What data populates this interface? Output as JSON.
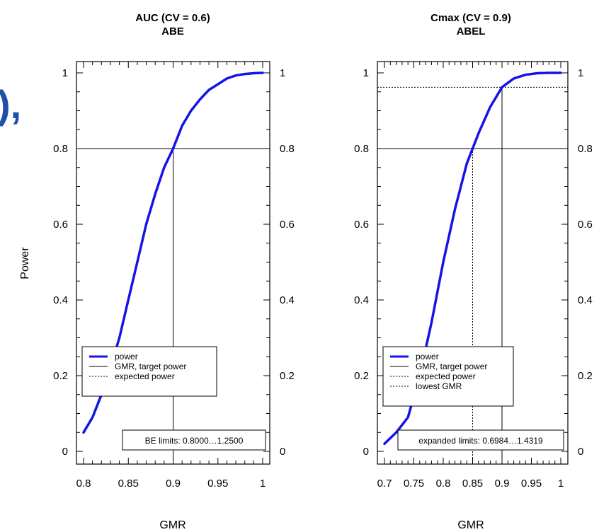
{
  "edge_text": "),",
  "y_axis_label": "Power",
  "colors": {
    "power": "#1414e6",
    "ref": "#000000"
  },
  "chart_data": [
    {
      "type": "line",
      "title": "AUC (CV = 0.6)",
      "subtitle": "ABE",
      "xlabel": "GMR",
      "ylabel": "Power",
      "xlim": [
        0.8,
        1.0
      ],
      "ylim": [
        0,
        1
      ],
      "xticks": [
        "0.8",
        "0.85",
        "0.9",
        "0.95",
        "1"
      ],
      "yticks": [
        "0",
        "0.2",
        "0.4",
        "0.6",
        "0.8",
        "1"
      ],
      "target_power": 0.8,
      "target_gmr": 0.9,
      "legend": [
        "power",
        "GMR, target power",
        "expected power"
      ],
      "limits_label": "BE limits: 0.8000…1.2500",
      "series": [
        {
          "name": "power",
          "x": [
            0.8,
            0.81,
            0.82,
            0.83,
            0.84,
            0.85,
            0.86,
            0.87,
            0.88,
            0.89,
            0.9,
            0.91,
            0.92,
            0.93,
            0.94,
            0.95,
            0.96,
            0.97,
            0.98,
            0.99,
            1.0
          ],
          "y": [
            0.05,
            0.09,
            0.15,
            0.22,
            0.3,
            0.4,
            0.5,
            0.6,
            0.68,
            0.75,
            0.8,
            0.86,
            0.9,
            0.93,
            0.955,
            0.97,
            0.985,
            0.993,
            0.997,
            0.999,
            1.0
          ]
        }
      ]
    },
    {
      "type": "line",
      "title": "Cmax (CV = 0.9)",
      "subtitle": "ABEL",
      "xlabel": "GMR",
      "ylabel": "Power",
      "xlim": [
        0.7,
        1.0
      ],
      "ylim": [
        0,
        1
      ],
      "xticks": [
        "0.7",
        "0.75",
        "0.8",
        "0.85",
        "0.9",
        "0.95",
        "1"
      ],
      "yticks": [
        "0",
        "0.2",
        "0.4",
        "0.6",
        "0.8",
        "1"
      ],
      "target_power": 0.8,
      "target_gmr": 0.9,
      "expected_power": 0.962,
      "lowest_gmr": 0.85,
      "legend": [
        "power",
        "GMR, target power",
        "expected power",
        "lowest GMR"
      ],
      "limits_label": "expanded limits: 0.6984…1.4319",
      "series": [
        {
          "name": "power",
          "x": [
            0.7,
            0.72,
            0.74,
            0.76,
            0.78,
            0.8,
            0.82,
            0.84,
            0.85,
            0.86,
            0.88,
            0.9,
            0.92,
            0.94,
            0.96,
            0.98,
            1.0
          ],
          "y": [
            0.02,
            0.05,
            0.09,
            0.2,
            0.34,
            0.5,
            0.64,
            0.76,
            0.8,
            0.84,
            0.91,
            0.962,
            0.985,
            0.995,
            0.999,
            1.0,
            1.0
          ]
        }
      ]
    }
  ]
}
